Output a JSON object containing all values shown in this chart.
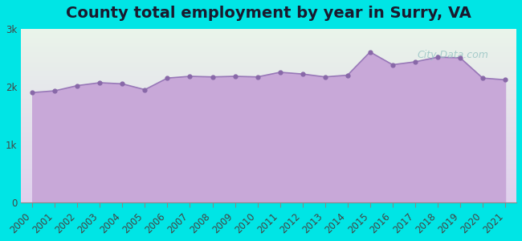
{
  "title": "County total employment by year in Surry, VA",
  "years": [
    2000,
    2001,
    2002,
    2003,
    2004,
    2005,
    2006,
    2007,
    2008,
    2009,
    2010,
    2011,
    2012,
    2013,
    2014,
    2015,
    2016,
    2017,
    2018,
    2019,
    2020,
    2021
  ],
  "values": [
    1900,
    1930,
    2020,
    2070,
    2050,
    1950,
    2150,
    2180,
    2170,
    2180,
    2170,
    2250,
    2220,
    2170,
    2200,
    2600,
    2380,
    2430,
    2510,
    2500,
    2150,
    2120
  ],
  "bg_color": "#00e5e5",
  "plot_bg_top": "#eaf5ea",
  "plot_bg_bottom": "#e0d0ee",
  "fill_color": "#c8a8d8",
  "line_color": "#9878b8",
  "marker_color": "#8868a8",
  "title_color": "#1a1a2e",
  "tick_color": "#444444",
  "ylim": [
    0,
    3000
  ],
  "yticks": [
    0,
    1000,
    2000,
    3000
  ],
  "ytick_labels": [
    "0",
    "1k",
    "2k",
    "3k"
  ],
  "watermark": "City-Data.com",
  "title_fontsize": 14,
  "tick_fontsize": 8.5
}
